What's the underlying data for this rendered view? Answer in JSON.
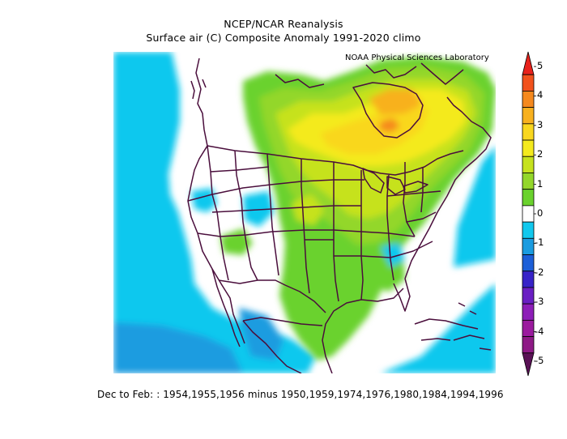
{
  "header": {
    "line1": "NCEP/NCAR Reanalysis",
    "line2": "Surface air (C) Composite Anomaly 1991-2020 climo",
    "credit": "NOAA Physical Sciences Laboratory"
  },
  "footer": {
    "text": "Dec to Feb: : 1954,1955,1956 minus 1950,1959,1974,1976,1980,1984,1994,1996"
  },
  "colorbar": {
    "labels": [
      "5",
      "4",
      "3",
      "2",
      "1",
      "0",
      "-1",
      "-2",
      "-3",
      "-4",
      "-5"
    ],
    "levels": [
      {
        "range": "4.5 to 5",
        "color": "#e8221c"
      },
      {
        "range": "4 to 4.5",
        "color": "#f2521d"
      },
      {
        "range": "3.5 to 4",
        "color": "#f5891e"
      },
      {
        "range": "3 to 3.5",
        "color": "#f8b11f"
      },
      {
        "range": "2.5 to 3",
        "color": "#f9d71f"
      },
      {
        "range": "2 to 2.5",
        "color": "#f4ea1e"
      },
      {
        "range": "1.5 to 2",
        "color": "#c6e21e"
      },
      {
        "range": "1 to 1.5",
        "color": "#93d72a"
      },
      {
        "range": "0.5 to 1",
        "color": "#6ad22d"
      },
      {
        "range": "-0.5 to 0.5",
        "color": "#ffffff"
      },
      {
        "range": "-1 to -0.5",
        "color": "#11c8ee"
      },
      {
        "range": "-1.5 to -1",
        "color": "#1b9ce0"
      },
      {
        "range": "-2 to -1.5",
        "color": "#1d5fd8"
      },
      {
        "range": "-2.5 to -2",
        "color": "#3723c8"
      },
      {
        "range": "-3 to -2.5",
        "color": "#6a1fc3"
      },
      {
        "range": "-3.5 to -3",
        "color": "#8d1eb8"
      },
      {
        "range": "-4 to -3.5",
        "color": "#9b1b9e"
      },
      {
        "range": "-4.5 to -4",
        "color": "#8e1a86"
      },
      {
        "range": "-5 to -4.5",
        "color": "#5a1256"
      }
    ]
  },
  "map": {
    "region": "North America",
    "field": "Surface air temperature anomaly",
    "units": "C",
    "colors": {
      "land_boundary": "#4a0e3c",
      "ocean_neutral": "#ffffff"
    }
  }
}
